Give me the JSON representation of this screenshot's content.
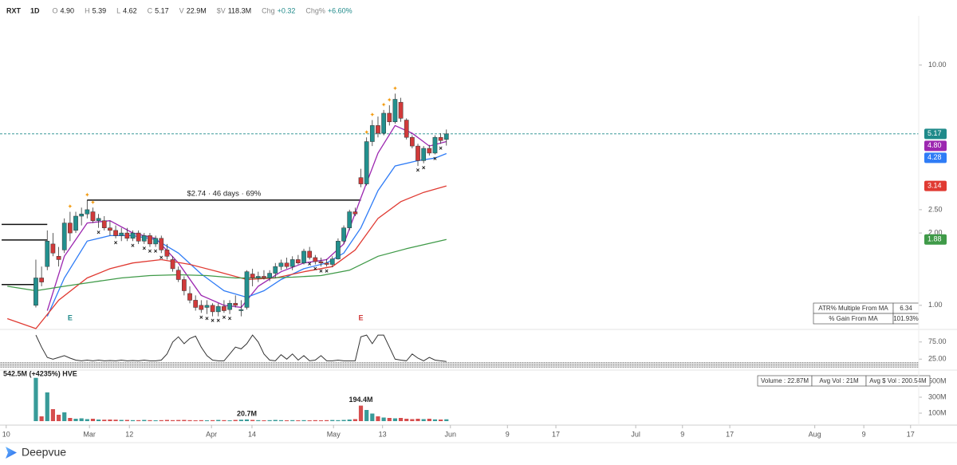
{
  "header": {
    "symbol": "RXT",
    "interval": "1D",
    "fields": [
      {
        "label": "O",
        "value": "4.90"
      },
      {
        "label": "H",
        "value": "5.39"
      },
      {
        "label": "L",
        "value": "4.62"
      },
      {
        "label": "C",
        "value": "5.17"
      },
      {
        "label": "V",
        "value": "22.9M"
      },
      {
        "label": "$V",
        "value": "118.3M"
      },
      {
        "label": "Chg",
        "value": "+0.32"
      },
      {
        "label": "Chg%",
        "value": "+6.60%"
      }
    ]
  },
  "chart_data": [
    {
      "type": "candlestick",
      "log_scale": true,
      "up_color": "#22908e",
      "down_color": "#d13a3a",
      "open": [
        1.0,
        1.3,
        1.45,
        1.8,
        1.6,
        1.7,
        2.2,
        2.05,
        2.35,
        2.4,
        2.45,
        2.25,
        2.25,
        2.1,
        2.05,
        1.95,
        2.0,
        1.9,
        2.0,
        1.85,
        1.95,
        1.8,
        1.9,
        1.7,
        1.55,
        1.4,
        1.28,
        1.12,
        1.05,
        1.0,
        0.98,
        1.0,
        0.94,
        0.99,
        0.96,
        1.02,
        0.95,
        0.98,
        1.35,
        1.3,
        1.32,
        1.3,
        1.36,
        1.45,
        1.5,
        1.45,
        1.55,
        1.5,
        1.68,
        1.58,
        1.52,
        1.5,
        1.48,
        1.56,
        1.85,
        2.1,
        2.45,
        3.4,
        3.2,
        4.8,
        5.6,
        5.2,
        6.3,
        5.8,
        7.0,
        5.9,
        5.0,
        4.6,
        4.0,
        4.5,
        4.3,
        5.0,
        4.9
      ],
      "high": [
        1.55,
        1.45,
        2.05,
        2.0,
        1.75,
        2.3,
        2.45,
        2.45,
        2.55,
        2.74,
        2.55,
        2.4,
        2.35,
        2.25,
        2.15,
        2.1,
        2.1,
        2.05,
        2.05,
        2.0,
        2.0,
        1.95,
        1.95,
        1.8,
        1.6,
        1.45,
        1.32,
        1.2,
        1.1,
        1.05,
        1.05,
        1.02,
        1.02,
        1.05,
        1.05,
        1.1,
        1.05,
        1.4,
        1.42,
        1.38,
        1.4,
        1.4,
        1.5,
        1.55,
        1.58,
        1.6,
        1.62,
        1.72,
        1.75,
        1.62,
        1.58,
        1.56,
        1.6,
        1.9,
        2.15,
        2.5,
        2.55,
        3.7,
        5.0,
        5.9,
        6.1,
        6.5,
        6.8,
        7.6,
        7.3,
        6.0,
        5.1,
        4.7,
        4.6,
        4.65,
        5.1,
        5.2,
        5.39
      ],
      "low": [
        0.98,
        1.2,
        1.4,
        1.6,
        1.45,
        1.65,
        1.85,
        2.0,
        2.15,
        2.3,
        2.2,
        2.1,
        2.05,
        1.95,
        1.9,
        1.85,
        1.85,
        1.85,
        1.8,
        1.8,
        1.75,
        1.75,
        1.65,
        1.55,
        1.38,
        1.25,
        1.1,
        1.02,
        0.95,
        0.93,
        0.92,
        0.9,
        0.9,
        0.93,
        0.92,
        0.98,
        0.9,
        0.96,
        1.2,
        1.25,
        1.28,
        1.26,
        1.3,
        1.4,
        1.42,
        1.4,
        1.48,
        1.48,
        1.55,
        1.48,
        1.45,
        1.45,
        1.44,
        1.55,
        1.8,
        2.05,
        2.35,
        3.1,
        3.15,
        4.6,
        5.0,
        5.1,
        5.6,
        5.7,
        5.8,
        4.9,
        4.5,
        3.8,
        3.9,
        4.2,
        4.25,
        4.7,
        4.62
      ],
      "close": [
        1.3,
        1.25,
        1.85,
        1.65,
        1.55,
        2.2,
        2.0,
        2.35,
        2.4,
        2.5,
        2.25,
        2.3,
        2.1,
        2.05,
        1.95,
        2.0,
        1.9,
        2.0,
        1.85,
        1.95,
        1.8,
        1.9,
        1.7,
        1.6,
        1.42,
        1.28,
        1.15,
        1.05,
        0.98,
        0.96,
        1.0,
        0.94,
        0.99,
        0.95,
        1.02,
        1.0,
        0.96,
        1.38,
        1.3,
        1.32,
        1.3,
        1.36,
        1.45,
        1.5,
        1.45,
        1.55,
        1.5,
        1.68,
        1.58,
        1.52,
        1.5,
        1.48,
        1.56,
        1.85,
        2.1,
        2.45,
        2.4,
        3.2,
        4.8,
        5.6,
        5.2,
        6.3,
        5.8,
        7.2,
        6.0,
        5.0,
        4.6,
        4.0,
        4.5,
        4.3,
        5.0,
        4.85,
        5.17
      ],
      "ylim": [
        0.8,
        16
      ],
      "yticks": [
        {
          "value": 10,
          "label": "10.00"
        },
        {
          "value": 2.5,
          "label": "2.50"
        },
        {
          "value": 2,
          "label": "2.00"
        },
        {
          "value": 1,
          "label": "1.00"
        }
      ],
      "series": [
        {
          "color": "#9c27b0",
          "x": [
            2,
            5,
            9,
            13,
            17,
            21,
            25,
            29,
            33,
            36,
            39,
            43,
            47,
            51,
            54,
            57,
            60,
            63,
            66,
            69,
            72
          ],
          "values": [
            0.95,
            1.6,
            2.2,
            2.25,
            2.0,
            1.9,
            1.5,
            1.1,
            1.0,
            0.98,
            1.2,
            1.38,
            1.5,
            1.55,
            1.8,
            2.8,
            4.3,
            5.6,
            5.2,
            4.6,
            4.8
          ]
        },
        {
          "color": "#2f7cf6",
          "x": [
            2,
            5,
            9,
            13,
            17,
            21,
            25,
            29,
            33,
            37,
            40,
            43,
            47,
            51,
            54,
            57,
            60,
            63,
            67,
            70,
            72
          ],
          "values": [
            0.9,
            1.3,
            1.85,
            1.95,
            1.95,
            1.88,
            1.65,
            1.35,
            1.15,
            1.08,
            1.15,
            1.28,
            1.42,
            1.5,
            1.65,
            2.1,
            3.0,
            3.8,
            4.0,
            4.1,
            4.28
          ]
        },
        {
          "color": "#e03a32",
          "x": [
            -5,
            0,
            4,
            9,
            13,
            17,
            22,
            27,
            32,
            37,
            42,
            47,
            52,
            56,
            60,
            64,
            68,
            72
          ],
          "values": [
            0.88,
            0.8,
            1.05,
            1.3,
            1.42,
            1.5,
            1.55,
            1.48,
            1.38,
            1.28,
            1.3,
            1.38,
            1.45,
            1.7,
            2.3,
            2.7,
            2.95,
            3.14
          ]
        },
        {
          "color": "#3f9a48",
          "x": [
            -5,
            0,
            5,
            10,
            15,
            20,
            25,
            30,
            35,
            40,
            45,
            50,
            55,
            60,
            65,
            72
          ],
          "values": [
            1.2,
            1.15,
            1.2,
            1.25,
            1.3,
            1.33,
            1.34,
            1.33,
            1.3,
            1.3,
            1.31,
            1.33,
            1.4,
            1.6,
            1.72,
            1.88
          ]
        }
      ],
      "tags": [
        {
          "value": 5.17,
          "label": "5.17",
          "color": "#1f8a8a"
        },
        {
          "value": 4.8,
          "label": "4.80",
          "color": "#9c27b0"
        },
        {
          "value": 4.28,
          "label": "4.28",
          "color": "#2f7cf6"
        },
        {
          "value": 3.14,
          "label": "3.14",
          "color": "#e03a32"
        },
        {
          "value": 1.88,
          "label": "1.88",
          "color": "#3f9a48"
        }
      ],
      "levels": [
        {
          "value": 2.74,
          "from": 9,
          "to": 57,
          "label": "$2.74 · 46 days · 69%"
        },
        {
          "value": 2.17,
          "from": -6,
          "to": 2
        },
        {
          "value": 1.87,
          "from": -6,
          "to": 2
        },
        {
          "value": 1.22,
          "from": -6,
          "to": 0
        }
      ],
      "up_marks": {
        "color": "#f39c12",
        "x": [
          6,
          9,
          10,
          58,
          59,
          61,
          62,
          63
        ]
      },
      "down_marks": {
        "color": "#111111",
        "x": [
          11,
          14,
          17,
          19,
          20,
          21,
          22,
          29,
          30,
          31,
          32,
          33,
          34,
          48,
          49,
          50,
          51,
          67,
          68,
          70,
          71
        ]
      },
      "events": [
        {
          "x": 6,
          "label": "E",
          "color": "#1f8a8a"
        },
        {
          "x": 57,
          "label": "E",
          "color": "#d13a3a"
        }
      ],
      "table": [
        [
          "ATR% Multiple From MA",
          "6.34"
        ],
        [
          "% Gain From MA",
          "101.93%"
        ]
      ]
    },
    {
      "type": "line",
      "color": "#333333",
      "values": [
        95,
        60,
        30,
        25,
        30,
        35,
        28,
        22,
        20,
        22,
        20,
        22,
        20,
        21,
        20,
        22,
        20,
        21,
        20,
        22,
        20,
        20,
        22,
        40,
        75,
        90,
        70,
        85,
        92,
        60,
        35,
        22,
        20,
        20,
        40,
        60,
        55,
        70,
        95,
        75,
        40,
        22,
        20,
        38,
        25,
        40,
        22,
        35,
        20,
        22,
        35,
        20,
        20,
        22,
        20,
        20,
        20,
        90,
        95,
        70,
        95,
        95,
        60,
        25,
        22,
        20,
        40,
        28,
        20,
        30,
        22,
        20,
        18
      ],
      "ylim": [
        0,
        100
      ],
      "yticks": [
        {
          "value": 75,
          "label": "75.00"
        },
        {
          "value": 25,
          "label": "25.00"
        }
      ]
    },
    {
      "type": "bar",
      "values": [
        542.5,
        60,
        360,
        150,
        80,
        110,
        40,
        30,
        35,
        25,
        30,
        20,
        18,
        20,
        18,
        15,
        15,
        12,
        12,
        15,
        12,
        10,
        12,
        15,
        12,
        14,
        15,
        12,
        10,
        12,
        10,
        12,
        15,
        12,
        10,
        15,
        18,
        20.7,
        15,
        12,
        10,
        12,
        15,
        12,
        10,
        12,
        10,
        12,
        10,
        12,
        10,
        12,
        14,
        12,
        15,
        20,
        25,
        194.4,
        140,
        95,
        60,
        45,
        40,
        35,
        40,
        30,
        25,
        30,
        25,
        30,
        22,
        20,
        22.87
      ],
      "ylim": [
        0,
        550
      ],
      "yticks": [
        {
          "value": 500,
          "label": "500M"
        },
        {
          "value": 300,
          "label": "300M"
        },
        {
          "value": 100,
          "label": "100M"
        }
      ],
      "xlim": [
        -5.45,
        154.55
      ],
      "xticks": [
        {
          "value": -5.2,
          "label": "10"
        },
        {
          "value": 9.4,
          "label": "Mar"
        },
        {
          "value": 16.4,
          "label": "12"
        },
        {
          "value": 30.8,
          "label": "Apr"
        },
        {
          "value": 37.9,
          "label": "14"
        },
        {
          "value": 52.2,
          "label": "May"
        },
        {
          "value": 60.8,
          "label": "13"
        },
        {
          "value": 72.7,
          "label": "Jun"
        },
        {
          "value": 82.7,
          "label": "9"
        },
        {
          "value": 91.2,
          "label": "17"
        },
        {
          "value": 105.2,
          "label": "Jul"
        },
        {
          "value": 113.4,
          "label": "9"
        },
        {
          "value": 121.7,
          "label": "17"
        },
        {
          "value": 136.6,
          "label": "Aug"
        },
        {
          "value": 145.2,
          "label": "9"
        },
        {
          "value": 153.4,
          "label": "17"
        }
      ],
      "annotations": [
        {
          "x": 0,
          "label": "542.5M (+4235%) HVE"
        },
        {
          "x": 57,
          "label": "194.4M"
        },
        {
          "x": 37,
          "label": "20.7M"
        }
      ],
      "table": [
        "Volume : 22.87M",
        "Avg Vol : 21M",
        "Avg $ Vol : 200.54M"
      ]
    }
  ],
  "footer": {
    "brand": "Deepvue"
  }
}
